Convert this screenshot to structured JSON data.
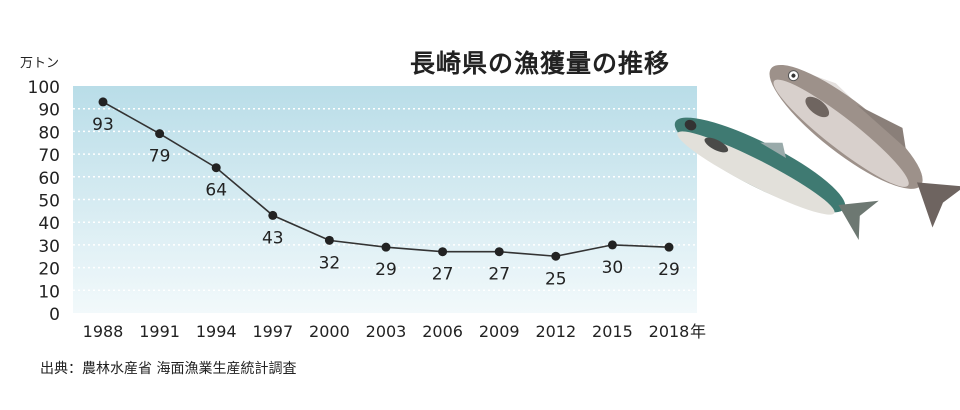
{
  "chart_data": {
    "type": "line",
    "title": "長崎県の漁獲量の推移",
    "ylabel": "万トン",
    "xlabel_unit": "年",
    "x": [
      "1988",
      "1991",
      "1994",
      "1997",
      "2000",
      "2003",
      "2006",
      "2009",
      "2012",
      "2015",
      "2018"
    ],
    "values": [
      93,
      79,
      64,
      43,
      32,
      29,
      27,
      27,
      25,
      30,
      29
    ],
    "ylim": [
      0,
      100
    ],
    "yticks": [
      0,
      10,
      20,
      30,
      40,
      50,
      60,
      70,
      80,
      90,
      100
    ],
    "grid": true,
    "data_labels": true,
    "colors": {
      "line": "#333333",
      "bg_top": "#b9dde8",
      "bg_bottom": "#f2f9fb"
    }
  },
  "source": "出典：農林水産省 海面漁業生産統計調査",
  "illustration": [
    "mackerel",
    "sea-bass"
  ]
}
